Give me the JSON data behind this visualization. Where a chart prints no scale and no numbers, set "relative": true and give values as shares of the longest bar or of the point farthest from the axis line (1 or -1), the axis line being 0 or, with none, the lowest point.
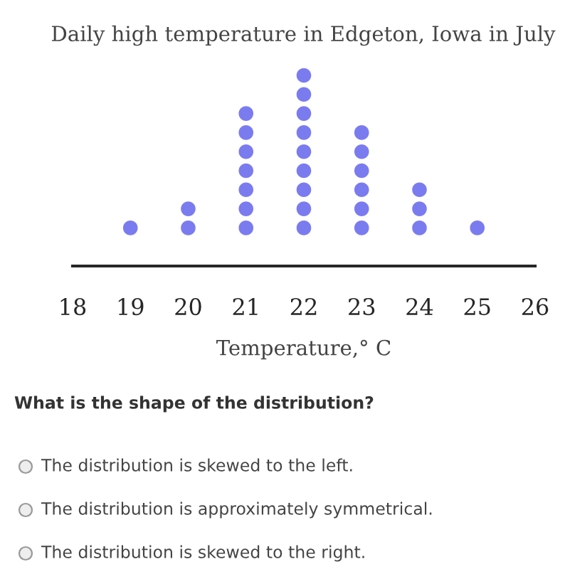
{
  "chart_data": {
    "type": "scatter",
    "title": "Daily high temperature in Edgeton, Iowa in July",
    "xlabel": "Temperature,° C",
    "x": [
      19,
      20,
      20,
      21,
      21,
      21,
      21,
      21,
      21,
      21,
      22,
      22,
      22,
      22,
      22,
      22,
      22,
      22,
      22,
      23,
      23,
      23,
      23,
      23,
      23,
      24,
      24,
      24,
      25
    ],
    "values": [
      0.2,
      0.2,
      0.3,
      0.2,
      0.3,
      0.4,
      0.5,
      0.6,
      0.7,
      0.8,
      0.2,
      0.3,
      0.4,
      0.5,
      0.6,
      0.7,
      0.8,
      0.9,
      1.0,
      0.2,
      0.3,
      0.4,
      0.5,
      0.6,
      0.7,
      0.2,
      0.3,
      0.4,
      0.2
    ],
    "relative": true,
    "color": "#7b7bf0",
    "marker": "circle",
    "xlim": [
      18,
      26
    ],
    "xticks": [
      18,
      19,
      20,
      21,
      22,
      23,
      24,
      25,
      26
    ],
    "tick_labels": "x",
    "grid": false,
    "legend": false,
    "annotations": [
      "What is the shape of the distribution?",
      "The distribution is skewed to the left.",
      "The distribution is approximately symmetrical.",
      "The distribution is skewed to the right."
    ]
  }
}
